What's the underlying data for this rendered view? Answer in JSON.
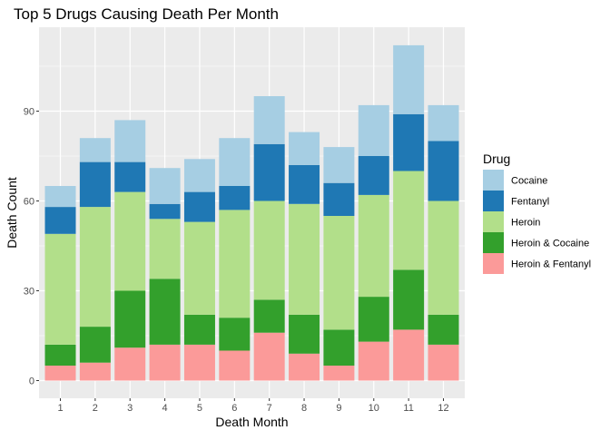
{
  "chart_data": {
    "type": "bar",
    "stacked": true,
    "title": "Top 5 Drugs Causing Death Per Month",
    "xlabel": "Death Month",
    "ylabel": "Death Count",
    "categories": [
      "1",
      "2",
      "3",
      "4",
      "5",
      "6",
      "7",
      "8",
      "9",
      "10",
      "11",
      "12"
    ],
    "ylim": [
      0,
      115
    ],
    "yticks": [
      0,
      30,
      60,
      90
    ],
    "grid": true,
    "legend_title": "Drug",
    "legend_position": "right",
    "series": [
      {
        "name": "Heroin & Fentanyl",
        "color": "#FB9A99",
        "values": [
          5,
          6,
          11,
          12,
          12,
          10,
          16,
          9,
          5,
          13,
          17,
          12
        ]
      },
      {
        "name": "Heroin & Cocaine",
        "color": "#33A02C",
        "values": [
          7,
          12,
          19,
          22,
          10,
          11,
          11,
          13,
          12,
          15,
          20,
          10
        ]
      },
      {
        "name": "Heroin",
        "color": "#B2DF8A",
        "values": [
          37,
          40,
          33,
          20,
          31,
          36,
          33,
          37,
          38,
          34,
          33,
          38
        ]
      },
      {
        "name": "Fentanyl",
        "color": "#1F78B4",
        "values": [
          9,
          15,
          10,
          5,
          10,
          8,
          19,
          13,
          11,
          13,
          19,
          20
        ]
      },
      {
        "name": "Cocaine",
        "color": "#A6CEE3",
        "values": [
          7,
          8,
          14,
          12,
          11,
          16,
          16,
          11,
          12,
          17,
          23,
          12
        ]
      }
    ],
    "legend_order": [
      "Cocaine",
      "Fentanyl",
      "Heroin",
      "Heroin & Cocaine",
      "Heroin & Fentanyl"
    ],
    "panel_background": "#EBEBEB",
    "grid_color": "#FFFFFF",
    "tick_color": "#333333"
  }
}
